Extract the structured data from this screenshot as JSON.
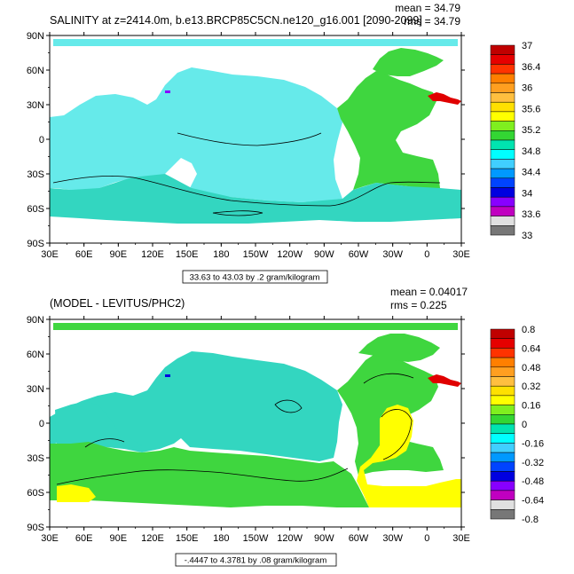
{
  "colors": {
    "land": "#ffffff",
    "frame": "#000000",
    "missing": "#e3e3e3",
    "box_border": "#000000"
  },
  "top_panel": {
    "title": "SALINITY at z=2414.0m, b.e13.BRCP85C5CN.ne120_g16.001 [2090-2099]",
    "mean_text": "mean = 34.79",
    "rms_text": "rms = 34.79",
    "range_text": "33.63 to 43.03 by .2 gram/kilogram",
    "lat_labels": [
      "90N",
      "60N",
      "30N",
      "0",
      "30S",
      "60S",
      "90S"
    ],
    "lon_labels": [
      "30E",
      "60E",
      "90E",
      "120E",
      "150E",
      "180",
      "150W",
      "120W",
      "90W",
      "60W",
      "30W",
      "0",
      "30E"
    ],
    "colorbar_labels": [
      "37",
      "36.4",
      "36",
      "35.6",
      "35.2",
      "34.8",
      "34.4",
      "34",
      "33.6",
      "33"
    ],
    "colorbar_colors": [
      "#c00000",
      "#e60000",
      "#ff3300",
      "#ff7f00",
      "#ff9f20",
      "#ffbf3f",
      "#ffe000",
      "#ffff00",
      "#7fef1f",
      "#33d633",
      "#00e4b0",
      "#00ffff",
      "#40cfff",
      "#0099ff",
      "#0044ff",
      "#0000e0",
      "#8800ff",
      "#c000c0",
      "#e0e0e0",
      "#777777"
    ],
    "field_values": {
      "pacific": 34.7,
      "atlantic": 35.0,
      "southern": 34.75,
      "mediterranean": 36.9
    }
  },
  "bottom_panel": {
    "title": "(MODEL - LEVITUS/PHC2)",
    "mean_text": "mean = 0.04017",
    "rms_text": "rms = 0.225",
    "range_text": "-.4447 to 4.3781 by .08 gram/kilogram",
    "lat_labels": [
      "90N",
      "60N",
      "30N",
      "0",
      "30S",
      "60S",
      "90S"
    ],
    "lon_labels": [
      "30E",
      "60E",
      "90E",
      "120E",
      "150E",
      "180",
      "150W",
      "120W",
      "90W",
      "60W",
      "30W",
      "0",
      "30E"
    ],
    "colorbar_labels": [
      "0.8",
      "0.64",
      "0.48",
      "0.32",
      "0.16",
      "0",
      "-0.16",
      "-0.32",
      "-0.48",
      "-0.64",
      "-0.8"
    ],
    "colorbar_colors": [
      "#c00000",
      "#e60000",
      "#ff3300",
      "#ff7f00",
      "#ff9f20",
      "#ffbf3f",
      "#ffe000",
      "#ffff00",
      "#7fef1f",
      "#33d633",
      "#00e4b0",
      "#00ffff",
      "#40cfff",
      "#0099ff",
      "#0044ff",
      "#0000e0",
      "#8800ff",
      "#c000c0",
      "#e0e0e0",
      "#777777"
    ],
    "field_values": {
      "pacific": -0.05,
      "atlantic_low": 0.3,
      "atlantic_high": 0.15,
      "southern": 0.12
    }
  }
}
